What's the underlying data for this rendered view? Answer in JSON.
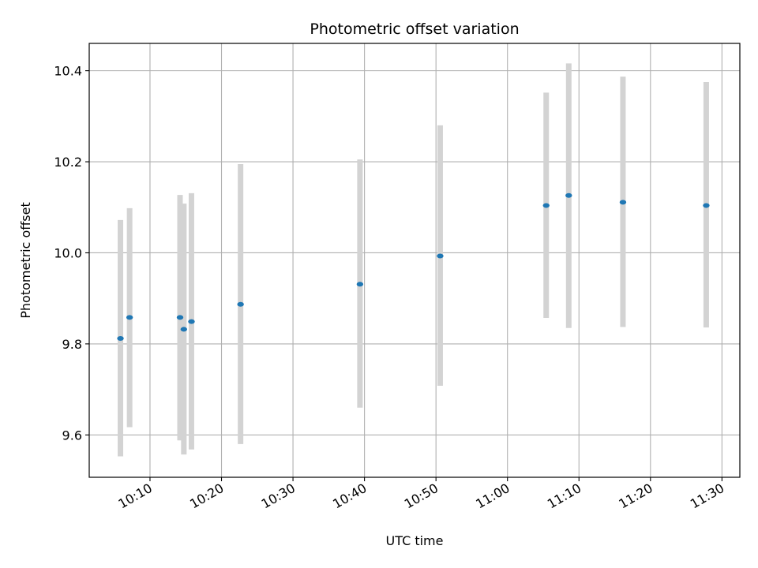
{
  "chart_data": {
    "type": "scatter",
    "title": "Photometric offset variation",
    "xlabel": "UTC time",
    "ylabel": "Photometric offset",
    "x_unit": "time (HH:MM UTC)",
    "xlim": [
      "10:01:30",
      "11:32:30"
    ],
    "ylim": [
      9.507,
      10.46
    ],
    "grid": true,
    "x_ticks": [
      "10:10",
      "10:20",
      "10:30",
      "10:40",
      "10:50",
      "11:00",
      "11:10",
      "11:20",
      "11:30"
    ],
    "y_ticks": [
      9.6,
      9.8,
      10.0,
      10.2,
      10.4
    ],
    "y_tick_labels": [
      "9.6",
      "9.8",
      "10.0",
      "10.2",
      "10.4"
    ],
    "series": [
      {
        "marker_color": "#1f77b4",
        "errorbar_color": "#d3d3d3",
        "points": [
          {
            "x": "10:05:52",
            "y": 9.812,
            "ylow": 9.553,
            "yhigh": 10.072
          },
          {
            "x": "10:07:09",
            "y": 9.858,
            "ylow": 9.617,
            "yhigh": 10.098
          },
          {
            "x": "10:14:12",
            "y": 9.858,
            "ylow": 9.588,
            "yhigh": 10.127
          },
          {
            "x": "10:14:44",
            "y": 9.832,
            "ylow": 9.557,
            "yhigh": 10.108
          },
          {
            "x": "10:15:48",
            "y": 9.849,
            "ylow": 9.568,
            "yhigh": 10.131
          },
          {
            "x": "10:22:40",
            "y": 9.887,
            "ylow": 9.58,
            "yhigh": 10.195
          },
          {
            "x": "10:39:22",
            "y": 9.931,
            "ylow": 9.66,
            "yhigh": 10.205
          },
          {
            "x": "10:50:35",
            "y": 9.993,
            "ylow": 9.708,
            "yhigh": 10.28
          },
          {
            "x": "11:05:25",
            "y": 10.104,
            "ylow": 9.857,
            "yhigh": 10.352
          },
          {
            "x": "11:08:34",
            "y": 10.126,
            "ylow": 9.835,
            "yhigh": 10.416
          },
          {
            "x": "11:16:09",
            "y": 10.111,
            "ylow": 9.837,
            "yhigh": 10.387
          },
          {
            "x": "11:27:48",
            "y": 10.104,
            "ylow": 9.836,
            "yhigh": 10.375
          }
        ]
      }
    ]
  }
}
